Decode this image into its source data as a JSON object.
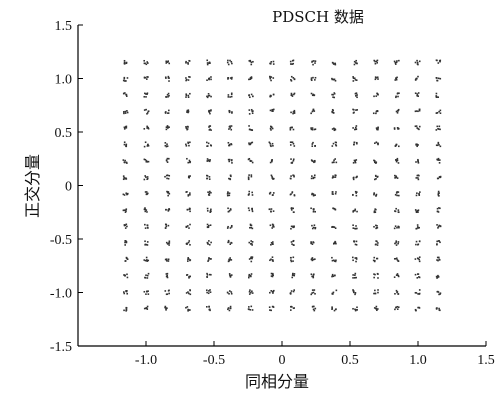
{
  "chart_data": {
    "type": "scatter",
    "title": "PDSCH 数据",
    "xlabel": "同相分量",
    "ylabel": "正交分量",
    "xlim": [
      -1.5,
      1.5
    ],
    "ylim": [
      -1.5,
      1.5
    ],
    "xticks": [
      -1.0,
      -0.5,
      0,
      0.5,
      1.0,
      1.5
    ],
    "xtick_labels": [
      "-1.0",
      "-0.5",
      "0",
      "0.5",
      "1.0",
      "1.5"
    ],
    "yticks": [
      1.5,
      1.0,
      0.5,
      0,
      -0.5,
      -1.0,
      -1.5
    ],
    "ytick_labels": [
      "1.5",
      "1.0",
      "0.5",
      "0",
      "-0.5",
      "-1.0",
      "-1.5"
    ],
    "constellation_levels": [
      -1.1504,
      -0.9971,
      -0.8437,
      -0.6903,
      -0.5369,
      -0.3835,
      -0.2301,
      -0.0767,
      0.0767,
      0.2301,
      0.3835,
      0.5369,
      0.6903,
      0.8437,
      0.9971,
      1.1504
    ],
    "points_description": "256-QAM constellation: 16 x 16 grid of clusters at I,Q in constellation_levels",
    "grid": false,
    "marker_color": "#333333"
  }
}
